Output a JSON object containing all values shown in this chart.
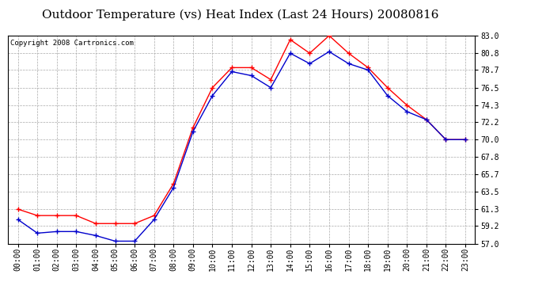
{
  "title": "Outdoor Temperature (vs) Heat Index (Last 24 Hours) 20080816",
  "copyright": "Copyright 2008 Cartronics.com",
  "x_labels": [
    "00:00",
    "01:00",
    "02:00",
    "03:00",
    "04:00",
    "05:00",
    "06:00",
    "07:00",
    "08:00",
    "09:00",
    "10:00",
    "11:00",
    "12:00",
    "13:00",
    "14:00",
    "15:00",
    "16:00",
    "17:00",
    "18:00",
    "19:00",
    "20:00",
    "21:00",
    "22:00",
    "23:00"
  ],
  "heat_index": [
    61.3,
    60.5,
    60.5,
    60.5,
    59.5,
    59.5,
    59.5,
    60.5,
    64.5,
    71.5,
    76.5,
    79.0,
    79.0,
    77.5,
    82.5,
    80.8,
    83.0,
    80.8,
    79.0,
    76.5,
    74.3,
    72.5,
    70.0,
    70.0
  ],
  "outdoor_temp": [
    60.0,
    58.3,
    58.5,
    58.5,
    58.0,
    57.3,
    57.3,
    60.0,
    64.0,
    71.0,
    75.5,
    78.5,
    78.0,
    76.5,
    80.8,
    79.5,
    81.0,
    79.5,
    78.7,
    75.5,
    73.5,
    72.5,
    70.0,
    70.0
  ],
  "ylim": [
    57.0,
    83.0
  ],
  "yticks": [
    57.0,
    59.2,
    61.3,
    63.5,
    65.7,
    67.8,
    70.0,
    72.2,
    74.3,
    76.5,
    78.7,
    80.8,
    83.0
  ],
  "red_color": "#ff0000",
  "blue_color": "#0000cc",
  "bg_color": "#ffffff",
  "grid_color": "#aaaaaa",
  "title_fontsize": 11,
  "copyright_fontsize": 6.5,
  "tick_fontsize": 7
}
